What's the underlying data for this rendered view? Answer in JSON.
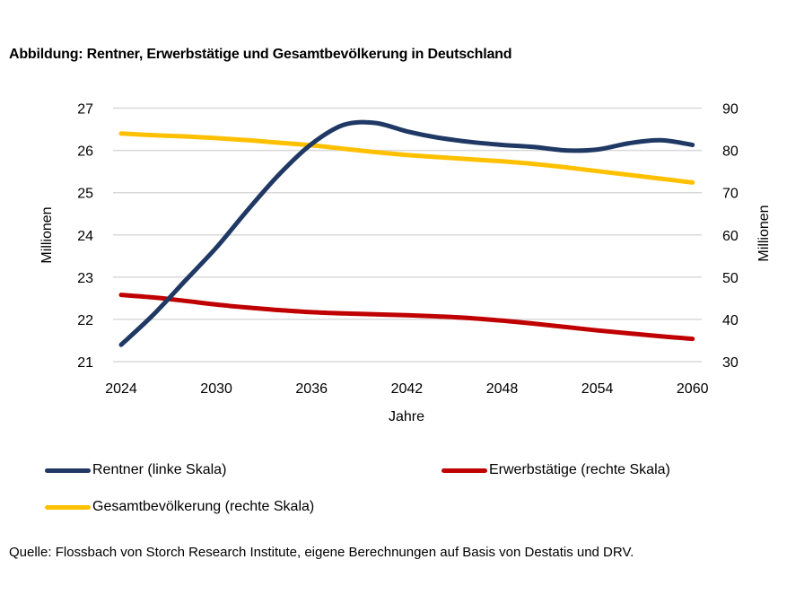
{
  "title": "Abbildung: Rentner, Erwerbstätige und Gesamtbevölkerung in Deutschland",
  "source": "Quelle: Flossbach von Storch Research Institute, eigene Berechnungen auf Basis von Destatis und DRV.",
  "colors": {
    "rentner": "#1F3864",
    "erwerbstaetige": "#C00000",
    "gesamtbevoelkerung": "#FFC000",
    "gridline": "#D9D9D9",
    "text": "#000000"
  },
  "legend": {
    "items": [
      {
        "id": "rentner",
        "label": "Rentner (linke Skala)",
        "color": "#1F3864"
      },
      {
        "id": "erwerbstaetige",
        "label": "Erwerbstätige (rechte Skala)",
        "color": "#C00000"
      },
      {
        "id": "gesamtbevoelkerung",
        "label": "Gesamtbevölkerung (rechte Skala)",
        "color": "#FFC000"
      }
    ]
  },
  "chart_data": {
    "type": "line",
    "title": "Abbildung: Rentner, Erwerbstätige und Gesamtbevölkerung in Deutschland",
    "xlabel": "Jahre",
    "ylabel_left": "Millionen",
    "ylabel_right": "Millionen",
    "grid": "horizontal",
    "legend_position": "bottom-left",
    "xlim": [
      2024,
      2060
    ],
    "x_tick_labels": [
      "2024",
      "2030",
      "2036",
      "2042",
      "2048",
      "2054",
      "2060"
    ],
    "x_ticks": [
      2024,
      2030,
      2036,
      2042,
      2048,
      2054,
      2060
    ],
    "ylim_left": [
      21,
      27
    ],
    "y_ticks_left": [
      21,
      22,
      23,
      24,
      25,
      26,
      27
    ],
    "ylim_right": [
      30,
      90
    ],
    "y_ticks_right": [
      30,
      40,
      50,
      60,
      70,
      80,
      90
    ],
    "x": [
      2024,
      2026,
      2028,
      2030,
      2032,
      2034,
      2036,
      2038,
      2040,
      2042,
      2044,
      2046,
      2048,
      2050,
      2052,
      2054,
      2056,
      2058,
      2060
    ],
    "series": [
      {
        "id": "gesamtbevoelkerung",
        "name": "Gesamtbevölkerung (rechte Skala)",
        "axis": "right",
        "unit": "Millionen",
        "color": "#FFC000",
        "values": [
          84.0,
          83.6,
          83.3,
          82.9,
          82.4,
          81.8,
          81.2,
          80.4,
          79.6,
          78.9,
          78.4,
          77.9,
          77.4,
          76.8,
          76.0,
          75.1,
          74.2,
          73.3,
          72.4
        ]
      },
      {
        "id": "erwerbstaetige",
        "name": "Erwerbstätige (rechte Skala)",
        "axis": "right",
        "unit": "Millionen",
        "color": "#C00000",
        "values": [
          45.8,
          45.2,
          44.4,
          43.5,
          42.8,
          42.2,
          41.7,
          41.4,
          41.2,
          41.0,
          40.7,
          40.3,
          39.7,
          39.0,
          38.2,
          37.4,
          36.7,
          36.0,
          35.4
        ]
      },
      {
        "id": "rentner",
        "name": "Rentner (linke Skala)",
        "axis": "left",
        "unit": "Millionen",
        "color": "#1F3864",
        "values": [
          21.4,
          22.1,
          22.9,
          23.7,
          24.6,
          25.45,
          26.15,
          26.6,
          26.65,
          26.45,
          26.3,
          26.2,
          26.13,
          26.08,
          26.0,
          26.02,
          26.17,
          26.24,
          26.13
        ]
      }
    ]
  }
}
